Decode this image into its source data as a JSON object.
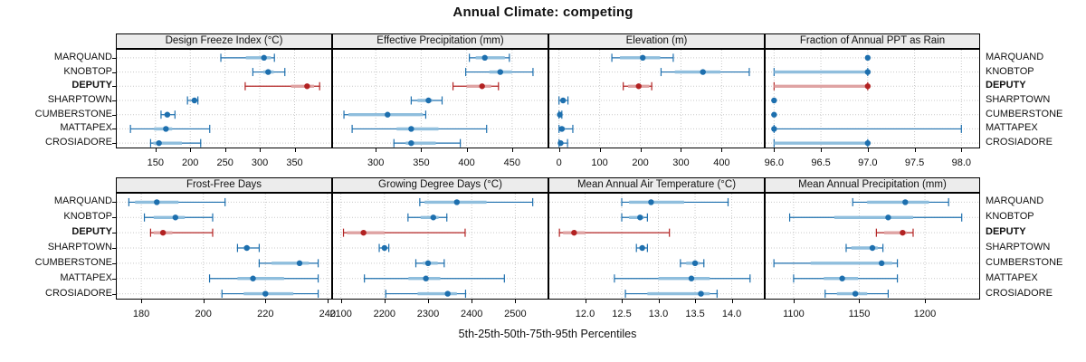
{
  "title": "Annual Climate: competing",
  "caption": "5th-25th-50th-75th-95th Percentiles",
  "sites": [
    "MARQUAND",
    "KNOBTOP",
    "DEPUTY",
    "SHARPTOWN",
    "CUMBERSTONE",
    "MATTAPEX",
    "CROSIADORE"
  ],
  "colors": {
    "series": "#1d6fae",
    "series_band": "#8fbedd",
    "highlight": "#b22222",
    "highlight_band": "#dfa3a3",
    "strip_bg": "#ececec",
    "panel_border": "#000000",
    "grid": "#c9c9c9",
    "text": "#111111"
  },
  "chart_data": {
    "type": "dotplot",
    "percentiles": [
      5,
      25,
      50,
      75,
      95
    ],
    "layout": {
      "rows": 2,
      "cols": 4,
      "highlight_site": "DEPUTY",
      "legend": "none",
      "grid": "dotted"
    },
    "panels": [
      {
        "title": "Design Freeze Index (°C)",
        "xlim": [
          93,
          404
        ],
        "ticks": [
          150,
          200,
          250,
          300,
          350
        ],
        "tick_labels": [
          "150",
          "200",
          "250",
          "300",
          "350"
        ],
        "values": [
          [
            244,
            280,
            306,
            316,
            321
          ],
          [
            290,
            305,
            312,
            320,
            336
          ],
          [
            279,
            345,
            368,
            378,
            386
          ],
          [
            196,
            203,
            206,
            209,
            211
          ],
          [
            158,
            163,
            167,
            171,
            178
          ],
          [
            114,
            148,
            165,
            174,
            228
          ],
          [
            143,
            147,
            155,
            188,
            215
          ]
        ]
      },
      {
        "title": "Effective Precipitation (mm)",
        "xlim": [
          252,
          490
        ],
        "ticks": [
          300,
          350,
          400,
          450
        ],
        "tick_labels": [
          "300",
          "350",
          "400",
          "450"
        ],
        "values": [
          [
            403,
            410,
            420,
            442,
            447
          ],
          [
            399,
            425,
            437,
            450,
            473
          ],
          [
            385,
            400,
            417,
            427,
            435
          ],
          [
            339,
            346,
            358,
            362,
            373
          ],
          [
            265,
            270,
            313,
            352,
            355
          ],
          [
            274,
            323,
            339,
            369,
            422
          ],
          [
            320,
            333,
            339,
            366,
            393
          ]
        ]
      },
      {
        "title": "Elevation (m)",
        "xlim": [
          -26,
          506
        ],
        "ticks": [
          0,
          100,
          200,
          300,
          400
        ],
        "tick_labels": [
          "0",
          "100",
          "200",
          "300",
          "400"
        ],
        "values": [
          [
            130,
            150,
            206,
            249,
            281
          ],
          [
            251,
            285,
            354,
            397,
            468
          ],
          [
            158,
            170,
            196,
            222,
            228
          ],
          [
            0,
            4,
            10,
            16,
            22
          ],
          [
            0,
            1,
            2,
            4,
            7
          ],
          [
            0,
            2,
            7,
            15,
            34
          ],
          [
            0,
            2,
            4,
            10,
            21
          ]
        ]
      },
      {
        "title": "Fraction of Annual PPT as Rain",
        "xlim": [
          95.9,
          98.2
        ],
        "ticks": [
          96.0,
          96.5,
          97.0,
          97.5,
          98.0
        ],
        "tick_labels": [
          "96.0",
          "96.5",
          "97.0",
          "97.5",
          "98.0"
        ],
        "values": [
          [
            97,
            97,
            97,
            97,
            97
          ],
          [
            96,
            96,
            97,
            97,
            97
          ],
          [
            96,
            96,
            97,
            97,
            97
          ],
          [
            96,
            96,
            96,
            96,
            96
          ],
          [
            96,
            96,
            96,
            96,
            96
          ],
          [
            96,
            96,
            96,
            96,
            98
          ],
          [
            96,
            96,
            97,
            97,
            97
          ]
        ]
      },
      {
        "title": "Frost-Free Days",
        "xlim": [
          171.8,
          241.5
        ],
        "ticks": [
          180,
          200,
          220,
          240
        ],
        "tick_labels": [
          "180",
          "200",
          "220",
          "240"
        ],
        "values": [
          [
            176,
            178,
            185,
            192,
            207
          ],
          [
            181,
            184,
            191,
            194,
            203
          ],
          [
            183,
            184,
            187,
            190,
            203
          ],
          [
            211,
            213,
            214,
            215,
            218
          ],
          [
            218,
            222,
            231,
            234,
            237
          ],
          [
            202,
            211,
            216,
            226,
            237
          ],
          [
            206,
            213,
            220,
            229,
            237
          ]
        ]
      },
      {
        "title": "Growing Degree Days (°C)",
        "xlim": [
          2080,
          2576
        ],
        "ticks": [
          2100,
          2200,
          2300,
          2400,
          2500
        ],
        "tick_labels": [
          "2100",
          "2200",
          "2300",
          "2400",
          "2500"
        ],
        "values": [
          [
            2281,
            2292,
            2366,
            2434,
            2540
          ],
          [
            2254,
            2283,
            2312,
            2324,
            2343
          ],
          [
            2106,
            2114,
            2152,
            2200,
            2385
          ],
          [
            2188,
            2195,
            2200,
            2205,
            2210
          ],
          [
            2272,
            2288,
            2300,
            2322,
            2337
          ],
          [
            2154,
            2255,
            2295,
            2328,
            2475
          ],
          [
            2203,
            2276,
            2345,
            2366,
            2386
          ]
        ]
      },
      {
        "title": "Mean Annual Air Temperature (°C)",
        "xlim": [
          11.5,
          14.45
        ],
        "ticks": [
          12.0,
          12.5,
          13.0,
          13.5,
          14.0
        ],
        "tick_labels": [
          "12.0",
          "12.5",
          "13.0",
          "13.5",
          "14.0"
        ],
        "values": [
          [
            12.5,
            12.6,
            12.9,
            13.35,
            13.95
          ],
          [
            12.5,
            12.6,
            12.75,
            12.8,
            12.85
          ],
          [
            11.65,
            11.7,
            11.85,
            12.0,
            13.15
          ],
          [
            12.7,
            12.74,
            12.78,
            12.81,
            12.85
          ],
          [
            13.3,
            13.38,
            13.5,
            13.56,
            13.62
          ],
          [
            12.4,
            13.0,
            13.45,
            13.7,
            14.25
          ],
          [
            12.55,
            12.85,
            13.58,
            13.7,
            13.8
          ]
        ]
      },
      {
        "title": "Mean Annual Precipitation (mm)",
        "xlim": [
          1078,
          1242
        ],
        "ticks": [
          1100,
          1150,
          1200
        ],
        "tick_labels": [
          "1100",
          "1150",
          "1200"
        ],
        "values": [
          [
            1145,
            1156,
            1185,
            1203,
            1218
          ],
          [
            1097,
            1131,
            1172,
            1191,
            1228
          ],
          [
            1163,
            1169,
            1183,
            1186,
            1191
          ],
          [
            1140,
            1144,
            1160,
            1164,
            1168
          ],
          [
            1085,
            1113,
            1167,
            1175,
            1179
          ],
          [
            1100,
            1123,
            1137,
            1149,
            1179
          ],
          [
            1124,
            1133,
            1147,
            1156,
            1172
          ]
        ]
      }
    ]
  }
}
